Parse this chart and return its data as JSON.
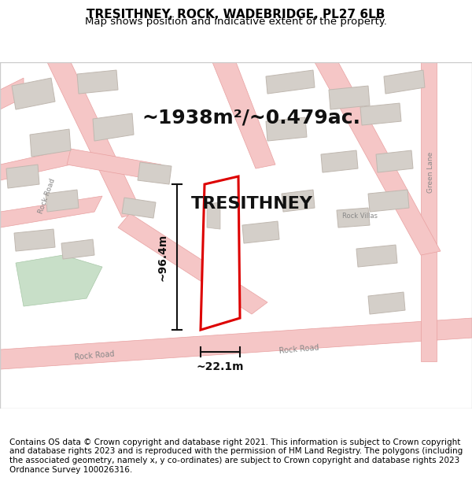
{
  "title": "TRESITHNEY, ROCK, WADEBRIDGE, PL27 6LB",
  "subtitle": "Map shows position and indicative extent of the property.",
  "footer": "Contains OS data © Crown copyright and database right 2021. This information is subject to Crown copyright and database rights 2023 and is reproduced with the permission of HM Land Registry. The polygons (including the associated geometry, namely x, y co-ordinates) are subject to Crown copyright and database rights 2023 Ordnance Survey 100026316.",
  "area_label": "~1938m²/~0.479ac.",
  "property_label": "TRESITHNEY",
  "dim_height": "~96.4m",
  "dim_width": "~22.1m",
  "map_bg": "#f5f2f0",
  "road_color": "#f5c6c6",
  "road_stroke": "#e8a0a0",
  "building_color": "#d4cfc9",
  "building_stroke": "#c0b8b0",
  "property_outline_color": "#dd0000",
  "dim_line_color": "#111111",
  "title_fontsize": 11,
  "subtitle_fontsize": 9.5,
  "footer_fontsize": 7.5
}
